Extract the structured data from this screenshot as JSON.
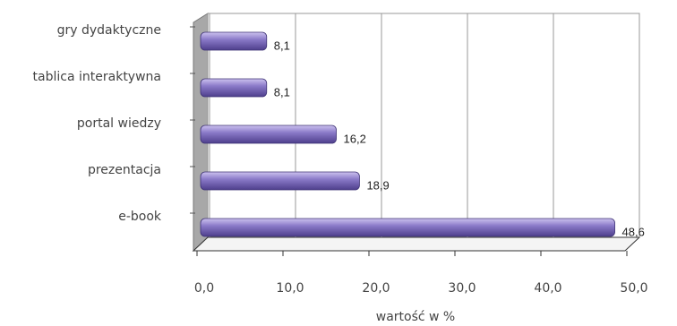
{
  "chart_data": {
    "type": "bar",
    "orientation": "horizontal",
    "categories": [
      "gry dydaktyczne",
      "tablica interaktywna",
      "portal wiedzy",
      "prezentacja",
      "e-book"
    ],
    "values": [
      8.1,
      8.1,
      16.2,
      18.9,
      48.6
    ],
    "value_labels": [
      "8,1",
      "8,1",
      "16,2",
      "18,9",
      "48,6"
    ],
    "color": "#8b7bc9",
    "xlim": [
      0,
      50
    ],
    "xticks": [
      {
        "value": 0,
        "label": "0,0"
      },
      {
        "value": 10,
        "label": "10,0"
      },
      {
        "value": 20,
        "label": "20,0"
      },
      {
        "value": 30,
        "label": "30,0"
      },
      {
        "value": 40,
        "label": "40,0"
      },
      {
        "value": 50,
        "label": "50,0"
      }
    ],
    "xlabel": "wartość w %",
    "grid": true
  }
}
